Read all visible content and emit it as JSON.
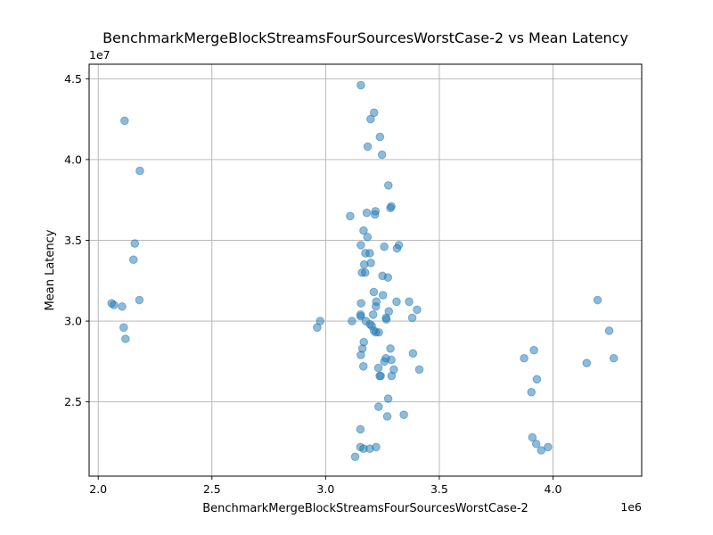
{
  "chart_data": {
    "type": "scatter",
    "title": "BenchmarkMergeBlockStreamsFourSourcesWorstCase-2 vs Mean Latency",
    "xlabel": "BenchmarkMergeBlockStreamsFourSourcesWorstCase-2",
    "ylabel": "Mean Latency",
    "x_offset_label": "1e6",
    "y_offset_label": "1e7",
    "xlim": [
      1960000,
      4390000
    ],
    "ylim": [
      20400000,
      45900000
    ],
    "x_ticks": [
      2000000,
      2500000,
      3000000,
      3500000,
      4000000
    ],
    "x_tick_labels": [
      "2.0",
      "2.5",
      "3.0",
      "3.5",
      "4.0"
    ],
    "y_ticks": [
      25000000,
      30000000,
      35000000,
      40000000,
      45000000
    ],
    "y_tick_labels": [
      "2.5",
      "3.0",
      "3.5",
      "4.0",
      "4.5"
    ],
    "grid": true,
    "color": "#1f77b4",
    "points": [
      {
        "x": 2116000,
        "y": 42400000
      },
      {
        "x": 2183000,
        "y": 39300000
      },
      {
        "x": 2161000,
        "y": 34800000
      },
      {
        "x": 2155000,
        "y": 33800000
      },
      {
        "x": 2181000,
        "y": 31300000
      },
      {
        "x": 2059000,
        "y": 31100000
      },
      {
        "x": 2069000,
        "y": 31000000
      },
      {
        "x": 2105000,
        "y": 30900000
      },
      {
        "x": 2112000,
        "y": 29600000
      },
      {
        "x": 2120000,
        "y": 28900000
      },
      {
        "x": 2963000,
        "y": 29600000
      },
      {
        "x": 2976000,
        "y": 30000000
      },
      {
        "x": 3108000,
        "y": 36500000
      },
      {
        "x": 3116000,
        "y": 30000000
      },
      {
        "x": 3155000,
        "y": 44600000
      },
      {
        "x": 3213000,
        "y": 42900000
      },
      {
        "x": 3198000,
        "y": 42500000
      },
      {
        "x": 3239000,
        "y": 41400000
      },
      {
        "x": 3185000,
        "y": 40800000
      },
      {
        "x": 3248000,
        "y": 40300000
      },
      {
        "x": 3276000,
        "y": 38400000
      },
      {
        "x": 3289000,
        "y": 37100000
      },
      {
        "x": 3285000,
        "y": 37000000
      },
      {
        "x": 3181000,
        "y": 36700000
      },
      {
        "x": 3219000,
        "y": 36800000
      },
      {
        "x": 3217000,
        "y": 36600000
      },
      {
        "x": 3167000,
        "y": 35600000
      },
      {
        "x": 3184000,
        "y": 35200000
      },
      {
        "x": 3155000,
        "y": 34700000
      },
      {
        "x": 3258000,
        "y": 34600000
      },
      {
        "x": 3322000,
        "y": 34700000
      },
      {
        "x": 3314000,
        "y": 34500000
      },
      {
        "x": 3175000,
        "y": 34200000
      },
      {
        "x": 3194000,
        "y": 34200000
      },
      {
        "x": 3170000,
        "y": 33500000
      },
      {
        "x": 3199000,
        "y": 33600000
      },
      {
        "x": 3160000,
        "y": 33000000
      },
      {
        "x": 3174000,
        "y": 33000000
      },
      {
        "x": 3250000,
        "y": 32800000
      },
      {
        "x": 3274000,
        "y": 32700000
      },
      {
        "x": 3212000,
        "y": 31800000
      },
      {
        "x": 3252000,
        "y": 31600000
      },
      {
        "x": 3156000,
        "y": 31100000
      },
      {
        "x": 3223000,
        "y": 31200000
      },
      {
        "x": 3312000,
        "y": 31200000
      },
      {
        "x": 3367000,
        "y": 31200000
      },
      {
        "x": 3221000,
        "y": 30900000
      },
      {
        "x": 3278000,
        "y": 30600000
      },
      {
        "x": 3402000,
        "y": 30700000
      },
      {
        "x": 3154000,
        "y": 30400000
      },
      {
        "x": 3154000,
        "y": 30300000
      },
      {
        "x": 3209000,
        "y": 30400000
      },
      {
        "x": 3177000,
        "y": 30000000
      },
      {
        "x": 3266000,
        "y": 30200000
      },
      {
        "x": 3267000,
        "y": 30100000
      },
      {
        "x": 3381000,
        "y": 30200000
      },
      {
        "x": 3195000,
        "y": 29800000
      },
      {
        "x": 3203000,
        "y": 29700000
      },
      {
        "x": 3213000,
        "y": 29400000
      },
      {
        "x": 3221000,
        "y": 29300000
      },
      {
        "x": 3234000,
        "y": 29300000
      },
      {
        "x": 3168000,
        "y": 28700000
      },
      {
        "x": 3162000,
        "y": 28300000
      },
      {
        "x": 3285000,
        "y": 28300000
      },
      {
        "x": 3155000,
        "y": 27900000
      },
      {
        "x": 3384000,
        "y": 28000000
      },
      {
        "x": 3265000,
        "y": 27700000
      },
      {
        "x": 3258000,
        "y": 27500000
      },
      {
        "x": 3289000,
        "y": 27600000
      },
      {
        "x": 3166000,
        "y": 27200000
      },
      {
        "x": 3232000,
        "y": 27100000
      },
      {
        "x": 3300000,
        "y": 27000000
      },
      {
        "x": 3412000,
        "y": 27000000
      },
      {
        "x": 3238000,
        "y": 26600000
      },
      {
        "x": 3242000,
        "y": 26600000
      },
      {
        "x": 3290000,
        "y": 26600000
      },
      {
        "x": 3275000,
        "y": 25200000
      },
      {
        "x": 3233000,
        "y": 24700000
      },
      {
        "x": 3344000,
        "y": 24200000
      },
      {
        "x": 3271000,
        "y": 24100000
      },
      {
        "x": 3153000,
        "y": 23300000
      },
      {
        "x": 3153000,
        "y": 22200000
      },
      {
        "x": 3167000,
        "y": 22100000
      },
      {
        "x": 3194000,
        "y": 22100000
      },
      {
        "x": 3222000,
        "y": 22200000
      },
      {
        "x": 3130000,
        "y": 21600000
      },
      {
        "x": 3873000,
        "y": 27700000
      },
      {
        "x": 3916000,
        "y": 28200000
      },
      {
        "x": 3905000,
        "y": 25600000
      },
      {
        "x": 3929000,
        "y": 26400000
      },
      {
        "x": 3909000,
        "y": 22800000
      },
      {
        "x": 3926000,
        "y": 22400000
      },
      {
        "x": 3948000,
        "y": 22000000
      },
      {
        "x": 3978000,
        "y": 22200000
      },
      {
        "x": 4196000,
        "y": 31300000
      },
      {
        "x": 4247000,
        "y": 29400000
      },
      {
        "x": 4267000,
        "y": 27700000
      },
      {
        "x": 4148000,
        "y": 27400000
      }
    ]
  }
}
